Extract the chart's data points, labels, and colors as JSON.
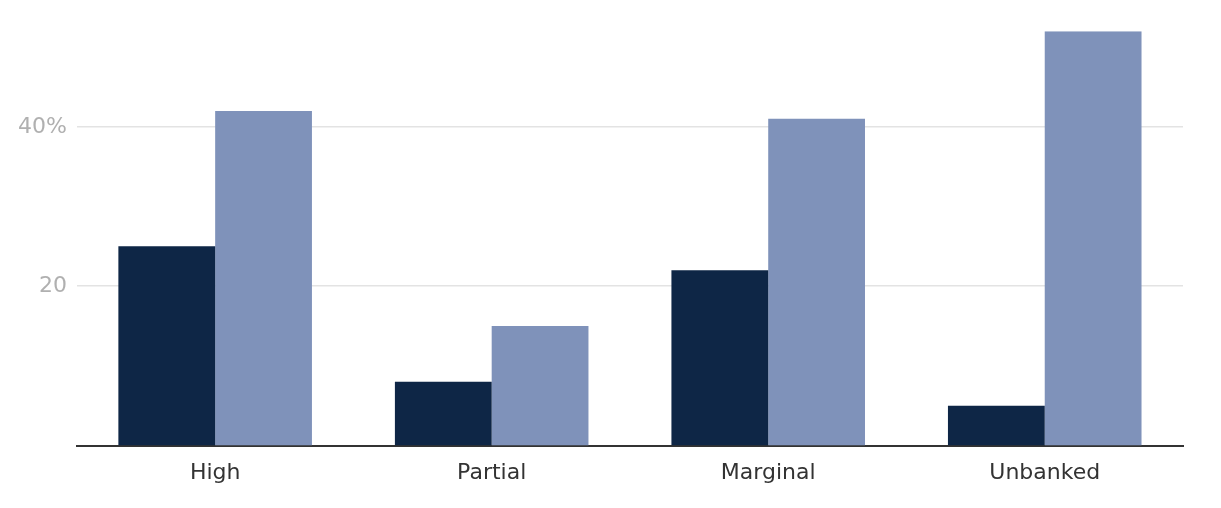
{
  "chart_data": {
    "type": "bar",
    "categories": [
      "High",
      "Partial",
      "Marginal",
      "Unbanked"
    ],
    "series": [
      {
        "color": "#0e2646",
        "values": [
          25,
          8,
          22,
          5
        ]
      },
      {
        "color": "#7f92ba",
        "values": [
          42,
          15,
          41,
          52
        ]
      }
    ],
    "ylim": [
      0,
      52
    ],
    "yticks": [
      {
        "value": 20,
        "label": "20"
      },
      {
        "value": 40,
        "label": "40%"
      }
    ],
    "grid": "y",
    "legend": false
  }
}
